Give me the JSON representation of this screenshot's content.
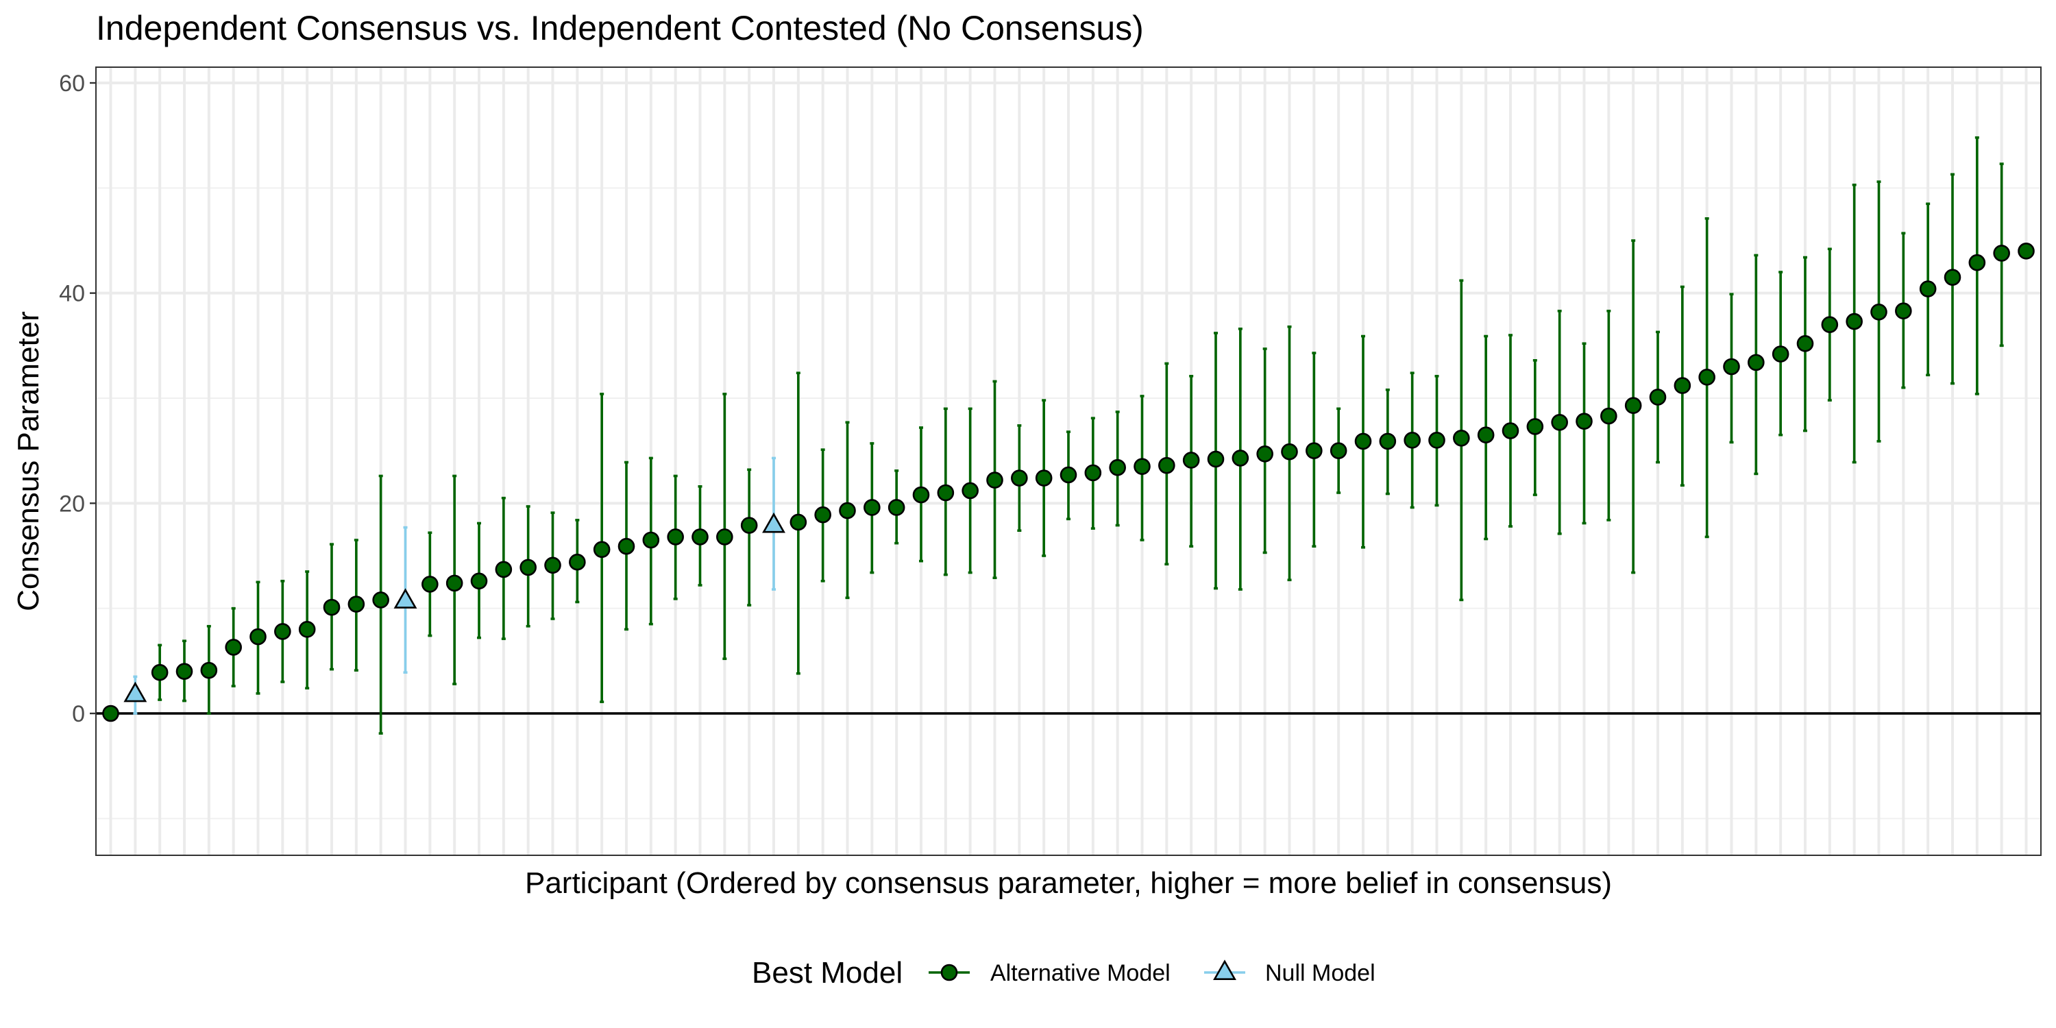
{
  "chart_data": {
    "type": "scatter",
    "title": "Independent Consensus vs. Independent Contested (No Consensus)",
    "xlabel": "Participant (Ordered by consensus parameter, higher = more belief in consensus)",
    "ylabel": "Consensus Parameter",
    "ylim": [
      -13.5,
      61.5
    ],
    "yticks": [
      0,
      20,
      40,
      60
    ],
    "reference_line_y": 0,
    "grid": true,
    "legend": {
      "title": "Best Model",
      "position": "bottom",
      "entries": [
        {
          "label": "Alternative Model",
          "series": "alternative"
        },
        {
          "label": "Null Model",
          "series": "null"
        }
      ]
    },
    "colors": {
      "alternative_fill": "#006400",
      "alternative_line": "#006400",
      "null_fill": "#87ceeb",
      "null_line": "#87ceeb",
      "point_stroke": "#000000"
    },
    "x": [
      1,
      2,
      3,
      4,
      5,
      6,
      7,
      8,
      9,
      10,
      11,
      12,
      13,
      14,
      15,
      16,
      17,
      18,
      19,
      20,
      21,
      22,
      23,
      24,
      25,
      26,
      27,
      28,
      29,
      30,
      31,
      32,
      33,
      34,
      35,
      36,
      37,
      38,
      39,
      40,
      41,
      42,
      43,
      44,
      45,
      46,
      47,
      48,
      49,
      50,
      51,
      52,
      53,
      54,
      55,
      56,
      57,
      58,
      59,
      60,
      61,
      62,
      63,
      64,
      65,
      66,
      67,
      68,
      69,
      70,
      71,
      72,
      73,
      74,
      75,
      76,
      77,
      78,
      79
    ],
    "y": [
      0,
      1.8,
      3.9,
      4,
      4.1,
      6.3,
      7.3,
      7.8,
      8,
      10.1,
      10.4,
      10.8,
      10.7,
      12.3,
      12.4,
      12.6,
      13.7,
      13.9,
      14.1,
      14.4,
      15.6,
      15.9,
      16.5,
      16.8,
      16.8,
      16.8,
      17.9,
      17.9,
      18.2,
      18.9,
      19.3,
      19.6,
      19.6,
      20.8,
      21,
      21.2,
      22.2,
      22.4,
      22.4,
      22.7,
      22.9,
      23.4,
      23.5,
      23.6,
      24.1,
      24.2,
      24.3,
      24.7,
      24.9,
      25,
      25,
      25.9,
      25.9,
      26,
      26,
      26.2,
      26.5,
      26.9,
      27.3,
      27.7,
      27.8,
      28.3,
      29.3,
      30.1,
      31.2,
      32,
      33,
      33.4,
      34.2,
      35.2,
      37,
      37.3,
      38.2,
      38.3,
      40.4,
      41.5,
      42.9,
      43.8,
      44
    ],
    "ymin": [
      0,
      0,
      1.3,
      1.2,
      0,
      2.6,
      1.9,
      3,
      2.4,
      4.2,
      4.1,
      -1.9,
      3.9,
      7.4,
      2.8,
      7.2,
      7.1,
      8.3,
      9,
      10.6,
      1.1,
      8,
      8.5,
      10.9,
      12.2,
      5.2,
      10.3,
      11.8,
      3.8,
      12.6,
      11,
      13.4,
      16.2,
      14.5,
      13.2,
      13.4,
      12.9,
      17.4,
      15,
      18.5,
      17.6,
      17.9,
      16.5,
      14.2,
      15.9,
      11.9,
      11.8,
      15.3,
      12.7,
      15.9,
      21,
      15.8,
      20.9,
      19.6,
      19.8,
      10.8,
      16.6,
      17.8,
      20.8,
      17.1,
      18.1,
      18.4,
      13.4,
      23.9,
      21.7,
      16.8,
      25.8,
      22.8,
      26.5,
      26.9,
      29.8,
      23.9,
      25.9,
      31,
      32.2,
      31.4,
      30.4,
      35,
      44
    ],
    "ymax": [
      0,
      3.5,
      6.5,
      6.9,
      8.3,
      10,
      12.5,
      12.6,
      13.5,
      16.1,
      16.5,
      22.6,
      17.7,
      17.2,
      22.6,
      18.1,
      20.5,
      19.7,
      19.1,
      18.4,
      30.4,
      23.9,
      24.3,
      22.6,
      21.6,
      30.4,
      23.2,
      24.3,
      32.4,
      25.1,
      27.7,
      25.7,
      23.1,
      27.2,
      29,
      29,
      31.6,
      27.4,
      29.8,
      26.8,
      28.1,
      28.7,
      30.2,
      33.3,
      32.1,
      36.2,
      36.6,
      34.7,
      36.8,
      34.3,
      29,
      35.9,
      30.8,
      32.4,
      32.1,
      41.2,
      35.9,
      36,
      33.6,
      38.3,
      35.2,
      38.3,
      45,
      36.3,
      40.6,
      47.1,
      39.9,
      43.6,
      42,
      43.4,
      44.2,
      50.3,
      50.6,
      45.7,
      48.5,
      51.3,
      54.8,
      52.3,
      44
    ],
    "series": [
      {
        "name": "Alternative Model",
        "key": "alternative",
        "indices": [
          2,
          3,
          4,
          5,
          6,
          7,
          8,
          9,
          10,
          11,
          13,
          14,
          15,
          16,
          17,
          18,
          19,
          20,
          21,
          22,
          23,
          24,
          25,
          26,
          28,
          29,
          30,
          31,
          32,
          33,
          34,
          35,
          36,
          37,
          38,
          39,
          40,
          41,
          42,
          43,
          44,
          45,
          46,
          47,
          48,
          49,
          50,
          51,
          52,
          53,
          54,
          55,
          56,
          57,
          58,
          59,
          60,
          61,
          62,
          63,
          64,
          65,
          66,
          67,
          68,
          69,
          70,
          71,
          72,
          73,
          74,
          75,
          76,
          77,
          78
        ]
      },
      {
        "name": "Null Model",
        "key": "null",
        "indices": [
          1,
          12,
          27
        ]
      }
    ]
  }
}
